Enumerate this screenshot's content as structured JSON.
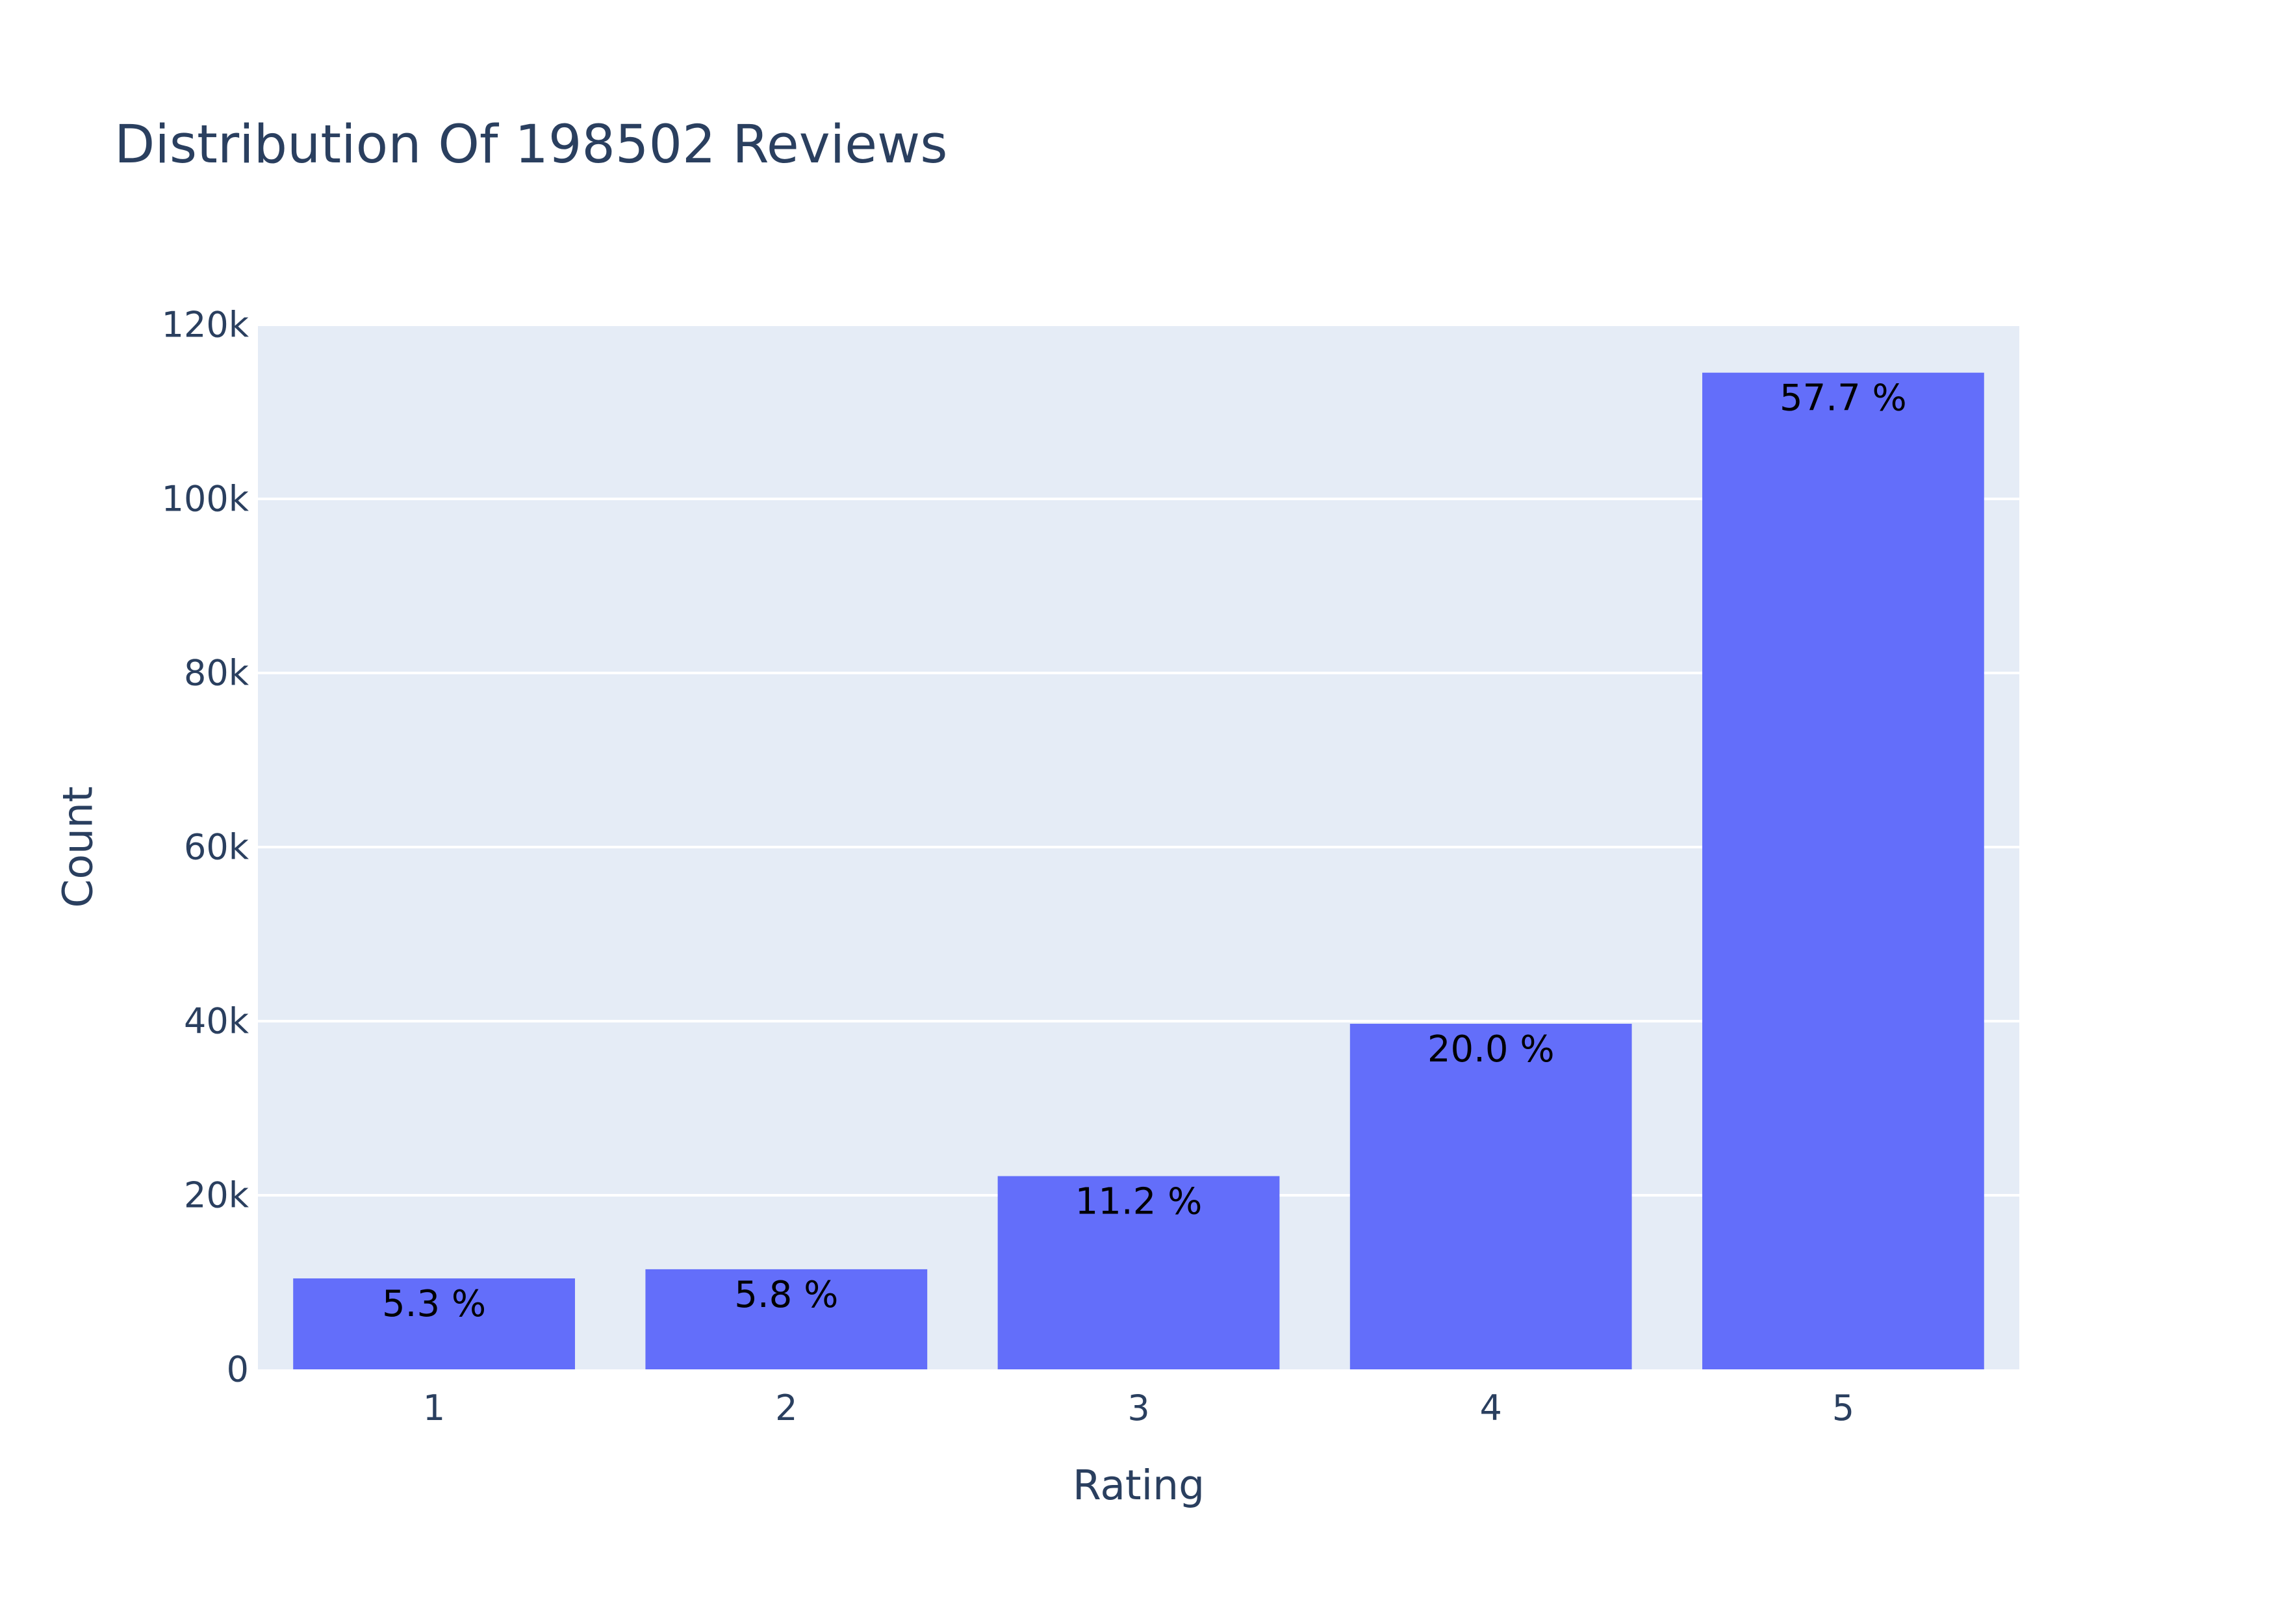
{
  "chart_data": {
    "type": "bar",
    "title": "Distribution Of 198502 Reviews",
    "xlabel": "Rating",
    "ylabel": "Count",
    "categories": [
      "1",
      "2",
      "3",
      "4",
      "5"
    ],
    "values": [
      10450,
      11500,
      22200,
      39700,
      114500
    ],
    "labels": [
      "5.3 %",
      "5.8 %",
      "11.2 %",
      "20.0 %",
      "57.7 %"
    ],
    "ylim": [
      0,
      120000
    ],
    "yticks": [
      0,
      20000,
      40000,
      60000,
      80000,
      100000,
      120000
    ],
    "ytick_labels": [
      "0",
      "20k",
      "40k",
      "60k",
      "80k",
      "100k",
      "120k"
    ],
    "grid": true,
    "colors": {
      "bar": "#636efa",
      "plot_bg": "#e5ecf6",
      "grid": "#ffffff",
      "text": "#2a3f5f",
      "bar_label": "#000000"
    }
  }
}
